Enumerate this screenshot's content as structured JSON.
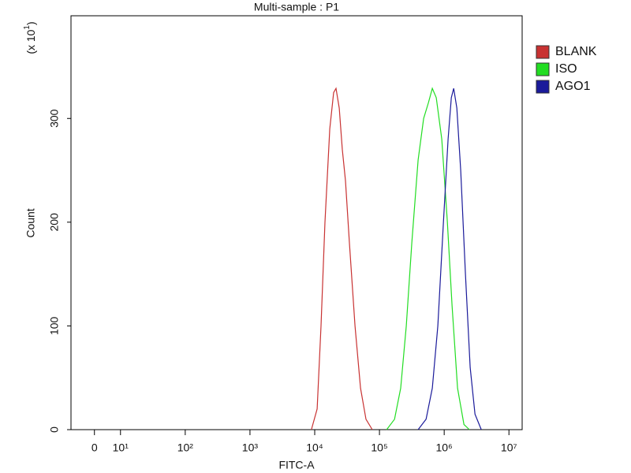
{
  "chart_data": {
    "type": "line",
    "title": "Multi-sample : P1",
    "x_label": "FITC-A",
    "y_label": "Count",
    "y_multiplier": {
      "base": "(x 10",
      "exponent": "1",
      "suffix": ")"
    },
    "x_scale": "logicle",
    "xlim": [
      -9,
      16000000
    ],
    "xticks": [
      0,
      {
        "value": 10,
        "label": "10¹"
      },
      {
        "value": 100,
        "label": "10²"
      },
      {
        "value": 1000,
        "label": "10³"
      },
      {
        "value": 10000,
        "label": "10⁴"
      },
      {
        "value": 100000,
        "label": "10⁵"
      },
      {
        "value": 1000000,
        "label": "10⁶"
      },
      {
        "value": 10000000,
        "label": "10⁷"
      }
    ],
    "ylim": [
      0,
      399
    ],
    "yticks": [
      0,
      100,
      200,
      300
    ],
    "legend": "right",
    "series": [
      {
        "name": "BLANK",
        "color": "#c83232",
        "x": [
          8900,
          10900,
          12500,
          14400,
          17100,
          19600,
          21300,
          23900,
          26700,
          29900,
          34400,
          41900,
          51000,
          62000,
          77600
        ],
        "values": [
          0,
          20,
          100,
          200,
          290,
          325,
          329,
          310,
          270,
          240,
          180,
          100,
          40,
          10,
          0
        ]
      },
      {
        "name": "ISO",
        "color": "#22dd22",
        "x": [
          129000,
          171000,
          213000,
          260000,
          316000,
          396000,
          482000,
          570000,
          656000,
          755000,
          918000,
          1120000,
          1320000,
          1610000,
          2020000,
          2450000
        ],
        "values": [
          0,
          10,
          40,
          100,
          180,
          260,
          300,
          315,
          329,
          320,
          280,
          200,
          120,
          40,
          5,
          0
        ]
      },
      {
        "name": "AGO1",
        "color": "#1a1a9a",
        "x": [
          396000,
          525000,
          656000,
          798000,
          973000,
          1150000,
          1290000,
          1400000,
          1570000,
          1800000,
          2130000,
          2520000,
          2990000,
          3740000
        ],
        "values": [
          0,
          10,
          40,
          100,
          200,
          280,
          320,
          329,
          310,
          250,
          150,
          60,
          15,
          0
        ]
      }
    ]
  }
}
